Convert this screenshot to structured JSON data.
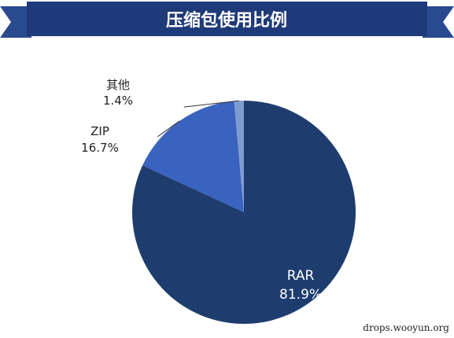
{
  "chart_data": {
    "type": "pie",
    "title": "压缩包使用比例",
    "slices": [
      {
        "label": "RAR",
        "value": 81.9,
        "display": "81.9%",
        "color": "#1e3d6e"
      },
      {
        "label": "ZIP",
        "value": 16.7,
        "display": "16.7%",
        "color": "#3a62bf"
      },
      {
        "label": "其他",
        "value": 1.4,
        "display": "1.4%",
        "color": "#7f9cd1"
      }
    ],
    "label_placement": "RAR inside; ZIP and 其他 outside-left with leader lines",
    "colors": {
      "banner": "#1f3a78",
      "banner_edge": "#2a4a8f"
    }
  },
  "watermark": "drops.wooyun.org"
}
